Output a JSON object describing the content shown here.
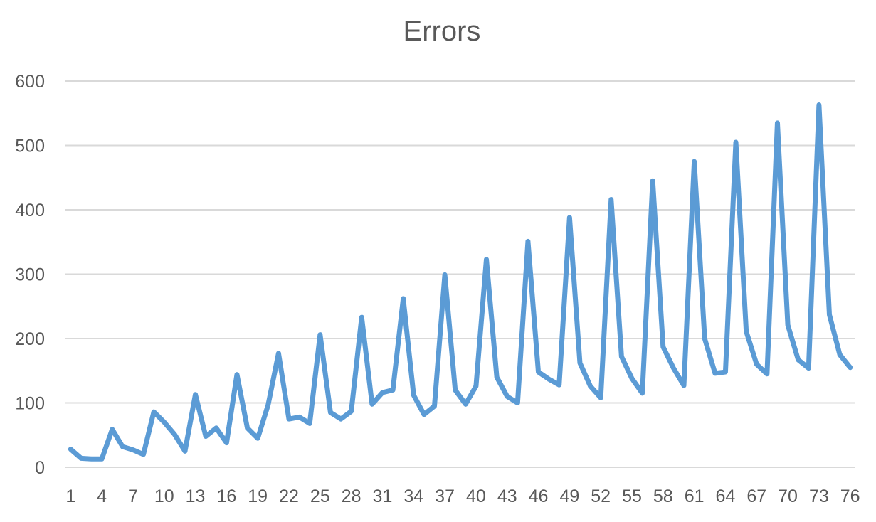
{
  "chart_data": {
    "type": "line",
    "title": "Errors",
    "xlabel": "",
    "ylabel": "",
    "ylim": [
      0,
      600
    ],
    "y_ticks": [
      0,
      100,
      200,
      300,
      400,
      500,
      600
    ],
    "x_tick_labels": [
      "1",
      "4",
      "7",
      "10",
      "13",
      "16",
      "19",
      "22",
      "25",
      "28",
      "31",
      "34",
      "37",
      "40",
      "43",
      "46",
      "49",
      "52",
      "55",
      "58",
      "61",
      "64",
      "67",
      "70",
      "73",
      "76"
    ],
    "grid": "horizontal",
    "legend": "none",
    "line_color": "#5b9bd5",
    "grid_color": "#d9d9d9",
    "text_color": "#595959",
    "x": [
      1,
      2,
      3,
      4,
      5,
      6,
      7,
      8,
      9,
      10,
      11,
      12,
      13,
      14,
      15,
      16,
      17,
      18,
      19,
      20,
      21,
      22,
      23,
      24,
      25,
      26,
      27,
      28,
      29,
      30,
      31,
      32,
      33,
      34,
      35,
      36,
      37,
      38,
      39,
      40,
      41,
      42,
      43,
      44,
      45,
      46,
      47,
      48,
      49,
      50,
      51,
      52,
      53,
      54,
      55,
      56,
      57,
      58,
      59,
      60,
      61,
      62,
      63,
      64,
      65,
      66,
      67,
      68,
      69,
      70,
      71,
      72,
      73,
      74,
      75,
      76
    ],
    "series": [
      {
        "values": [
          28,
          14,
          13,
          13,
          59,
          32,
          27,
          20,
          86,
          70,
          51,
          25,
          113,
          48,
          61,
          38,
          144,
          61,
          45,
          97,
          177,
          75,
          78,
          68,
          206,
          85,
          75,
          87,
          233,
          98,
          116,
          120,
          262,
          112,
          82,
          95,
          299,
          120,
          98,
          126,
          323,
          140,
          110,
          100,
          351,
          148,
          137,
          128,
          388,
          162,
          126,
          108,
          416,
          172,
          138,
          115,
          445,
          187,
          154,
          127,
          475,
          200,
          146,
          148,
          505,
          211,
          160,
          145,
          535,
          221,
          167,
          154,
          563,
          237,
          175,
          155
        ]
      }
    ]
  }
}
